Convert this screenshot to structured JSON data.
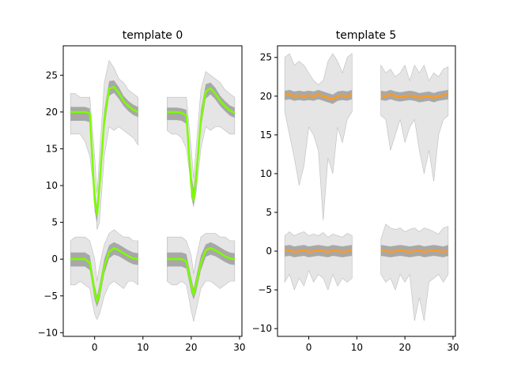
{
  "chart_data": [
    {
      "type": "line",
      "title": "template 0",
      "xlim": [
        -6.5,
        30.5
      ],
      "ylim": [
        -10.5,
        29
      ],
      "xticks": [
        0,
        10,
        20,
        30
      ],
      "yticks": [
        -10,
        -5,
        0,
        5,
        10,
        15,
        20,
        25
      ],
      "mean_color": "#7cfc00",
      "panels": [
        {
          "offset_x": 0,
          "offset_y": 20,
          "x": [
            -5,
            -4,
            -3,
            -2,
            -1,
            0,
            0.5,
            1,
            2,
            3,
            4,
            5,
            6,
            7,
            8,
            9
          ],
          "mean": [
            20,
            20,
            20,
            20,
            19.8,
            8,
            6,
            10,
            19,
            23.2,
            23.4,
            22.6,
            21.5,
            20.8,
            20.3,
            20
          ],
          "band_lo": [
            18.8,
            18.8,
            18.8,
            18.8,
            18.6,
            6.5,
            5,
            8.5,
            17.8,
            22.2,
            22.6,
            21.8,
            20.8,
            20.1,
            19.6,
            19.3
          ],
          "band_hi": [
            20.7,
            20.7,
            20.7,
            20.7,
            20.5,
            9.5,
            7,
            11.5,
            20.2,
            24.2,
            24.3,
            23.4,
            22.2,
            21.5,
            21,
            20.7
          ],
          "env_lo": [
            17,
            17,
            17,
            16,
            14,
            8.5,
            4,
            5,
            14,
            18,
            17.5,
            18,
            17.5,
            17,
            16.5,
            15.5
          ],
          "env_hi": [
            22.5,
            22.5,
            22,
            22,
            22,
            14,
            9,
            14,
            24,
            27,
            26,
            24.5,
            24,
            23,
            22.5,
            22
          ]
        },
        {
          "offset_x": 20,
          "offset_y": 20,
          "x": [
            15,
            16,
            17,
            18,
            19,
            20,
            20.5,
            21,
            22,
            23,
            24,
            25,
            26,
            27,
            28,
            29
          ],
          "mean": [
            20,
            20,
            20,
            19.9,
            19.5,
            10,
            8,
            11,
            19,
            22.8,
            23.2,
            22.5,
            21.5,
            20.8,
            20.2,
            19.9
          ],
          "band_lo": [
            18.9,
            18.9,
            18.9,
            18.8,
            18.4,
            8.5,
            7,
            9.5,
            17.8,
            21.8,
            22.4,
            21.7,
            20.8,
            20.1,
            19.5,
            19.2
          ],
          "band_hi": [
            20.6,
            20.6,
            20.6,
            20.5,
            20.3,
            11.5,
            9.5,
            12.5,
            20.2,
            23.8,
            24,
            23.3,
            22.2,
            21.5,
            20.9,
            20.6
          ],
          "env_lo": [
            17.5,
            17,
            17,
            16.5,
            15,
            10,
            7.5,
            9,
            15,
            18,
            17.5,
            18,
            18,
            17.5,
            17,
            17
          ],
          "env_hi": [
            22,
            22,
            22,
            22,
            22,
            15,
            11,
            15,
            23,
            25.5,
            25,
            24.5,
            24,
            23,
            22.5,
            22
          ]
        },
        {
          "offset_x": 0,
          "offset_y": 0,
          "x": [
            -5,
            -4,
            -3,
            -2,
            -1,
            0,
            0.5,
            1,
            2,
            3,
            4,
            5,
            6,
            7,
            8,
            9
          ],
          "mean": [
            0,
            0,
            0,
            0,
            -0.5,
            -4.5,
            -5.8,
            -4.5,
            -1,
            1,
            1.5,
            1.2,
            0.8,
            0.4,
            0.1,
            0
          ],
          "band_lo": [
            -1,
            -1,
            -1,
            -1,
            -1.5,
            -5.5,
            -6.5,
            -5.5,
            -2,
            0.1,
            0.6,
            0.4,
            0,
            -0.4,
            -0.7,
            -0.8
          ],
          "band_hi": [
            0.9,
            0.9,
            0.9,
            0.9,
            0.5,
            -3.5,
            -5,
            -3.5,
            0,
            1.9,
            2.3,
            2,
            1.6,
            1.2,
            0.9,
            0.8
          ],
          "env_lo": [
            -3.5,
            -3.5,
            -3,
            -3.5,
            -4,
            -7.5,
            -8.2,
            -7.5,
            -5,
            -3.5,
            -3,
            -3.5,
            -4,
            -3,
            -3,
            -3.5
          ],
          "env_hi": [
            2.5,
            3,
            3,
            3,
            2.5,
            0,
            -3,
            -1,
            2,
            3.5,
            4,
            3.5,
            3,
            3,
            2.5,
            2.5
          ]
        },
        {
          "offset_x": 20,
          "offset_y": 0,
          "x": [
            15,
            16,
            17,
            18,
            19,
            20,
            20.5,
            21,
            22,
            23,
            24,
            25,
            26,
            27,
            28,
            29
          ],
          "mean": [
            0,
            0,
            0,
            0,
            -0.3,
            -3.5,
            -4.8,
            -3.5,
            -0.5,
            1.2,
            1.5,
            1.2,
            0.8,
            0.4,
            0.1,
            0
          ],
          "band_lo": [
            -1,
            -1,
            -1,
            -1,
            -1.3,
            -4.5,
            -5.5,
            -4.5,
            -1.5,
            0.3,
            0.6,
            0.4,
            0,
            -0.4,
            -0.7,
            -0.8
          ],
          "band_hi": [
            0.9,
            0.9,
            0.9,
            0.9,
            0.7,
            -2.5,
            -4,
            -2.5,
            0.5,
            2,
            2.3,
            2,
            1.6,
            1.2,
            0.9,
            0.8
          ],
          "env_lo": [
            -3,
            -3.5,
            -3.5,
            -3,
            -3.5,
            -7,
            -8.5,
            -7,
            -4,
            -3,
            -3,
            -3.5,
            -4,
            -3.5,
            -3,
            -3
          ],
          "env_hi": [
            3,
            3,
            3,
            3,
            2.5,
            0.5,
            -2,
            0,
            3,
            3.5,
            3.5,
            3.5,
            3,
            3,
            2.5,
            2.5
          ]
        }
      ]
    },
    {
      "type": "line",
      "title": "template 5",
      "xlim": [
        -6.5,
        30.5
      ],
      "ylim": [
        -11,
        26.5
      ],
      "xticks": [
        0,
        10,
        20,
        30
      ],
      "yticks": [
        -10,
        -5,
        0,
        5,
        10,
        15,
        20,
        25
      ],
      "mean_color": "#ff9a1f",
      "panels": [
        {
          "offset_x": 0,
          "offset_y": 20,
          "x": [
            -5,
            -4,
            -3,
            -2,
            -1,
            0,
            1,
            2,
            3,
            4,
            5,
            6,
            7,
            8,
            9
          ],
          "mean": [
            20.1,
            20.2,
            20,
            20.1,
            20,
            20.1,
            20,
            20.2,
            20,
            19.8,
            19.6,
            20,
            20.1,
            20,
            20.2
          ],
          "band_lo": [
            19.5,
            19.6,
            19.4,
            19.5,
            19.4,
            19.5,
            19.4,
            19.6,
            19.4,
            19.2,
            19,
            19.4,
            19.5,
            19.4,
            19.6
          ],
          "band_hi": [
            20.7,
            20.8,
            20.6,
            20.7,
            20.6,
            20.7,
            20.6,
            20.8,
            20.6,
            20.4,
            20.2,
            20.6,
            20.7,
            20.6,
            20.8
          ],
          "env_lo": [
            18,
            15,
            12,
            8.5,
            11,
            16,
            15,
            13,
            4,
            12,
            10,
            16,
            14,
            17,
            18
          ],
          "env_hi": [
            25,
            25.5,
            24,
            24.5,
            24,
            23,
            22,
            21.5,
            22,
            24.5,
            25.5,
            24.5,
            23,
            25,
            25.5
          ]
        },
        {
          "offset_x": 20,
          "offset_y": 20,
          "x": [
            15,
            16,
            17,
            18,
            19,
            20,
            21,
            22,
            23,
            24,
            25,
            26,
            27,
            28,
            29
          ],
          "mean": [
            20.1,
            20,
            20.2,
            20,
            19.9,
            20,
            20.1,
            20,
            19.8,
            19.9,
            20,
            19.8,
            20,
            20.1,
            20.2
          ],
          "band_lo": [
            19.5,
            19.4,
            19.6,
            19.4,
            19.3,
            19.4,
            19.5,
            19.4,
            19.2,
            19.3,
            19.4,
            19.2,
            19.4,
            19.5,
            19.6
          ],
          "band_hi": [
            20.7,
            20.6,
            20.8,
            20.6,
            20.5,
            20.6,
            20.7,
            20.6,
            20.4,
            20.5,
            20.6,
            20.4,
            20.6,
            20.7,
            20.8
          ],
          "env_lo": [
            17.5,
            17,
            13,
            15,
            17,
            14,
            16,
            17,
            13,
            10,
            13,
            9,
            15,
            17,
            17.5
          ],
          "env_hi": [
            24,
            23,
            23.5,
            22.5,
            23,
            24,
            22,
            24,
            23,
            24,
            22,
            23,
            22.5,
            23.5,
            23.8
          ]
        },
        {
          "offset_x": 0,
          "offset_y": 0,
          "x": [
            -5,
            -4,
            -3,
            -2,
            -1,
            0,
            1,
            2,
            3,
            4,
            5,
            6,
            7,
            8,
            9
          ],
          "mean": [
            0,
            0.1,
            -0.1,
            0,
            0.1,
            -0.1,
            0,
            0.1,
            0,
            -0.1,
            0.1,
            0,
            -0.1,
            0,
            0.1
          ],
          "band_lo": [
            -0.7,
            -0.6,
            -0.8,
            -0.7,
            -0.6,
            -0.8,
            -0.7,
            -0.6,
            -0.7,
            -0.8,
            -0.6,
            -0.7,
            -0.8,
            -0.7,
            -0.6
          ],
          "band_hi": [
            0.7,
            0.8,
            0.6,
            0.7,
            0.8,
            0.6,
            0.7,
            0.8,
            0.7,
            0.6,
            0.8,
            0.7,
            0.6,
            0.7,
            0.8
          ],
          "env_lo": [
            -4,
            -3,
            -5,
            -3.5,
            -4.5,
            -2.5,
            -4,
            -3,
            -3.5,
            -5,
            -3,
            -4.5,
            -3.5,
            -4,
            -3.5
          ],
          "env_hi": [
            2,
            2.5,
            2,
            2.3,
            2.5,
            2,
            2.2,
            2,
            2.4,
            1.8,
            2.2,
            2,
            1.8,
            2.3,
            2
          ]
        },
        {
          "offset_x": 20,
          "offset_y": 0,
          "x": [
            15,
            16,
            17,
            18,
            19,
            20,
            21,
            22,
            23,
            24,
            25,
            26,
            27,
            28,
            29
          ],
          "mean": [
            0.1,
            0,
            -0.1,
            0,
            0.1,
            0,
            -0.1,
            0,
            0.1,
            -0.1,
            0,
            0.1,
            0,
            -0.1,
            0.1
          ],
          "band_lo": [
            -0.6,
            -0.7,
            -0.8,
            -0.7,
            -0.6,
            -0.7,
            -0.8,
            -0.7,
            -0.6,
            -0.8,
            -0.7,
            -0.6,
            -0.7,
            -0.8,
            -0.6
          ],
          "band_hi": [
            0.8,
            0.7,
            0.6,
            0.7,
            0.8,
            0.7,
            0.6,
            0.7,
            0.8,
            0.6,
            0.7,
            0.8,
            0.7,
            0.6,
            0.8
          ],
          "env_lo": [
            -3,
            -4,
            -3.5,
            -5,
            -3,
            -4,
            -3,
            -9,
            -6,
            -9,
            -4,
            -3.5,
            -3,
            -4,
            -3
          ],
          "env_hi": [
            1.5,
            3.5,
            3,
            2.8,
            3,
            2.5,
            2.8,
            3,
            2.5,
            3,
            2.8,
            2.5,
            2.2,
            3,
            3.2
          ]
        }
      ]
    }
  ]
}
